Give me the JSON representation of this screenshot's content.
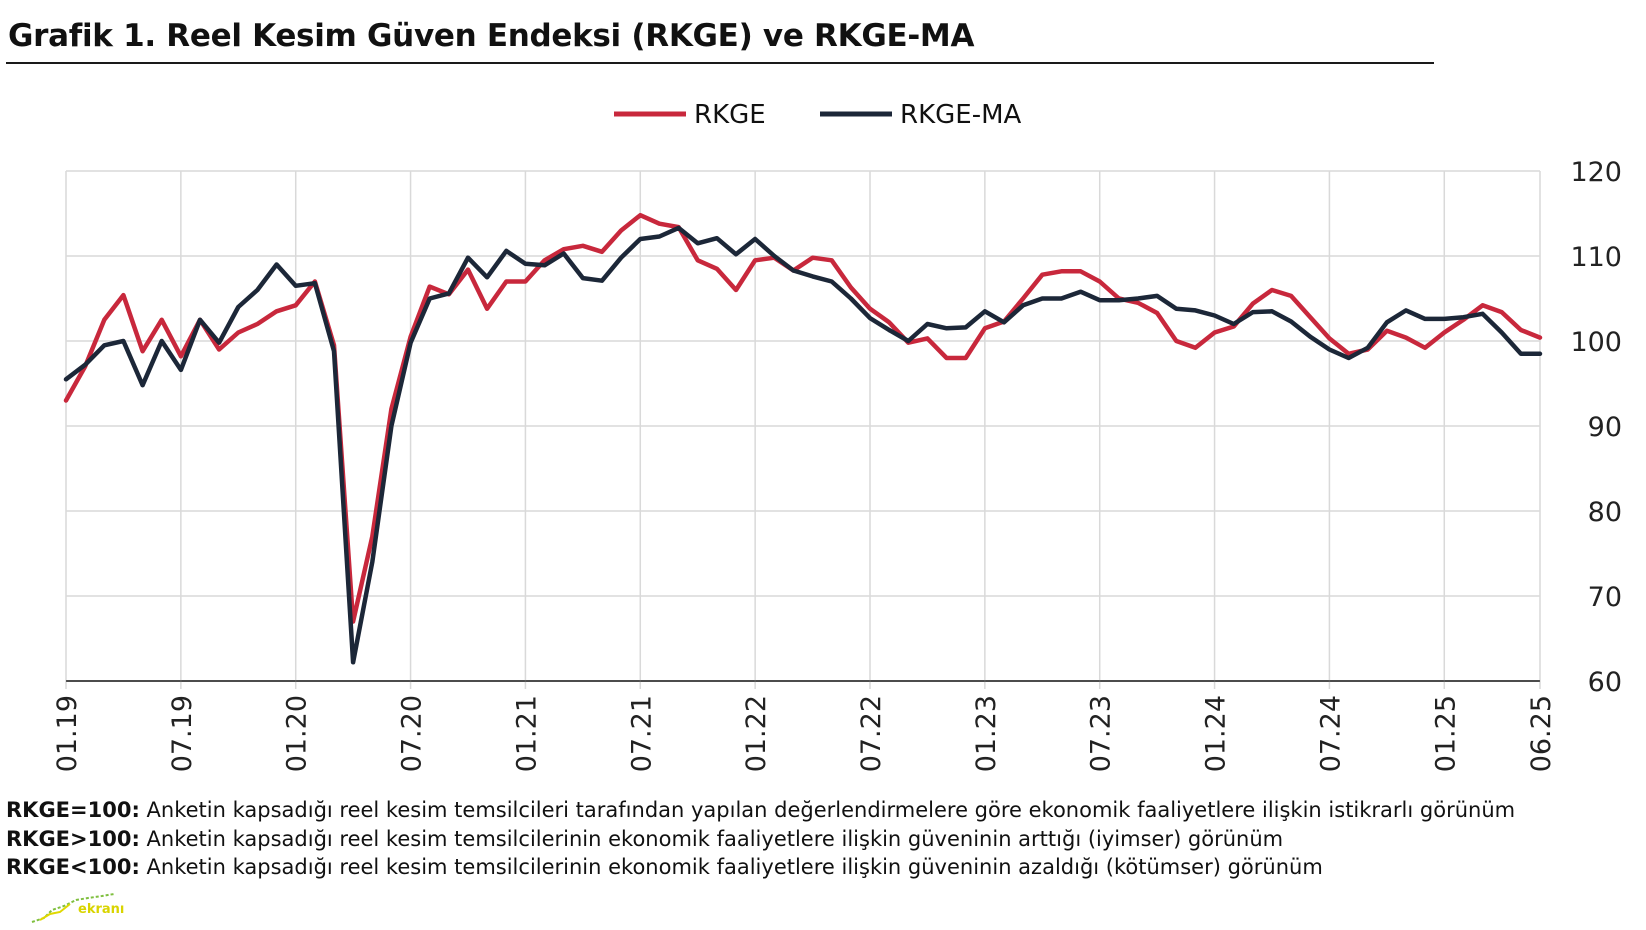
{
  "title": "Grafik 1. Reel Kesim Güven Endeksi (RKGE) ve RKGE-MA",
  "notes": [
    {
      "label": "RKGE=100:",
      "text": "Anketin kapsadığı reel kesim temsilcileri tarafından yapılan değerlendirmelere göre ekonomik faaliyetlere ilişkin istikrarlı görünüm"
    },
    {
      "label": "RKGE>100:",
      "text": "Anketin kapsadığı reel kesim temsilcilerinin ekonomik faaliyetlere ilişkin güveninin arttığı (iyimser) görünüm"
    },
    {
      "label": "RKGE<100:",
      "text": "Anketin kapsadığı reel kesim temsilcilerinin ekonomik faaliyetlere ilişkin güveninin azaldığı (kötümser) görünüm"
    }
  ],
  "logo": {
    "text": "ekranı"
  },
  "chart_data": {
    "type": "line",
    "title": "Grafik 1. Reel Kesim Güven Endeksi (RKGE) ve RKGE-MA",
    "xlabel": "",
    "ylabel": "",
    "ylim": [
      60,
      120
    ],
    "yticks": [
      60,
      70,
      80,
      90,
      100,
      110,
      120
    ],
    "y_axis_side": "right",
    "grid": true,
    "legend": "top-center",
    "xtick_labels": [
      "01.19",
      "07.19",
      "01.20",
      "07.20",
      "01.21",
      "07.21",
      "01.22",
      "07.22",
      "01.23",
      "07.23",
      "01.24",
      "07.24",
      "01.25",
      "06.25"
    ],
    "xtick_months": [
      0,
      6,
      12,
      18,
      24,
      30,
      36,
      42,
      48,
      54,
      60,
      66,
      72,
      77
    ],
    "x_start": "01.19",
    "x_end": "06.25",
    "series": [
      {
        "name": "RKGE",
        "color": "#c8283c",
        "values": [
          93.0,
          97.0,
          102.5,
          105.4,
          98.8,
          102.5,
          98.2,
          102.5,
          99.0,
          101.0,
          102.0,
          103.5,
          104.2,
          107.0,
          99.5,
          67.0,
          77.0,
          92.0,
          100.5,
          106.4,
          105.5,
          108.4,
          103.8,
          107.0,
          107.0,
          109.5,
          110.8,
          111.2,
          110.5,
          113.0,
          114.8,
          113.8,
          113.4,
          109.5,
          108.5,
          106.0,
          109.5,
          109.8,
          108.3,
          109.8,
          109.5,
          106.3,
          103.8,
          102.2,
          99.8,
          100.3,
          98.0,
          98.0,
          101.5,
          102.3,
          105.0,
          107.8,
          108.2,
          108.2,
          107.0,
          105.0,
          104.5,
          103.3,
          100.0,
          99.2,
          101.0,
          101.7,
          104.4,
          106.0,
          105.3,
          102.8,
          100.3,
          98.5,
          99.0,
          101.2,
          100.4,
          99.2,
          101.0,
          102.5,
          104.2,
          103.4,
          101.3,
          100.4
        ]
      },
      {
        "name": "RKGE-MA",
        "color": "#1c2738",
        "values": [
          95.5,
          97.2,
          99.5,
          100.0,
          94.8,
          100.0,
          96.6,
          102.5,
          99.8,
          104.0,
          106.0,
          109.0,
          106.5,
          106.8,
          98.8,
          62.2,
          74.0,
          90.0,
          99.8,
          105.0,
          105.6,
          109.8,
          107.5,
          110.6,
          109.1,
          108.9,
          110.3,
          107.4,
          107.1,
          109.8,
          112.0,
          112.3,
          113.3,
          111.5,
          112.1,
          110.2,
          112.0,
          110.0,
          108.3,
          107.6,
          107.0,
          105.0,
          102.7,
          101.3,
          100.0,
          102.0,
          101.5,
          101.6,
          103.5,
          102.2,
          104.2,
          105.0,
          105.0,
          105.8,
          104.8,
          104.8,
          105.0,
          105.3,
          103.8,
          103.6,
          103.0,
          102.0,
          103.4,
          103.5,
          102.3,
          100.5,
          99.0,
          98.0,
          99.2,
          102.2,
          103.6,
          102.6,
          102.6,
          102.8,
          103.2,
          101.0,
          98.5,
          98.5
        ]
      }
    ]
  }
}
